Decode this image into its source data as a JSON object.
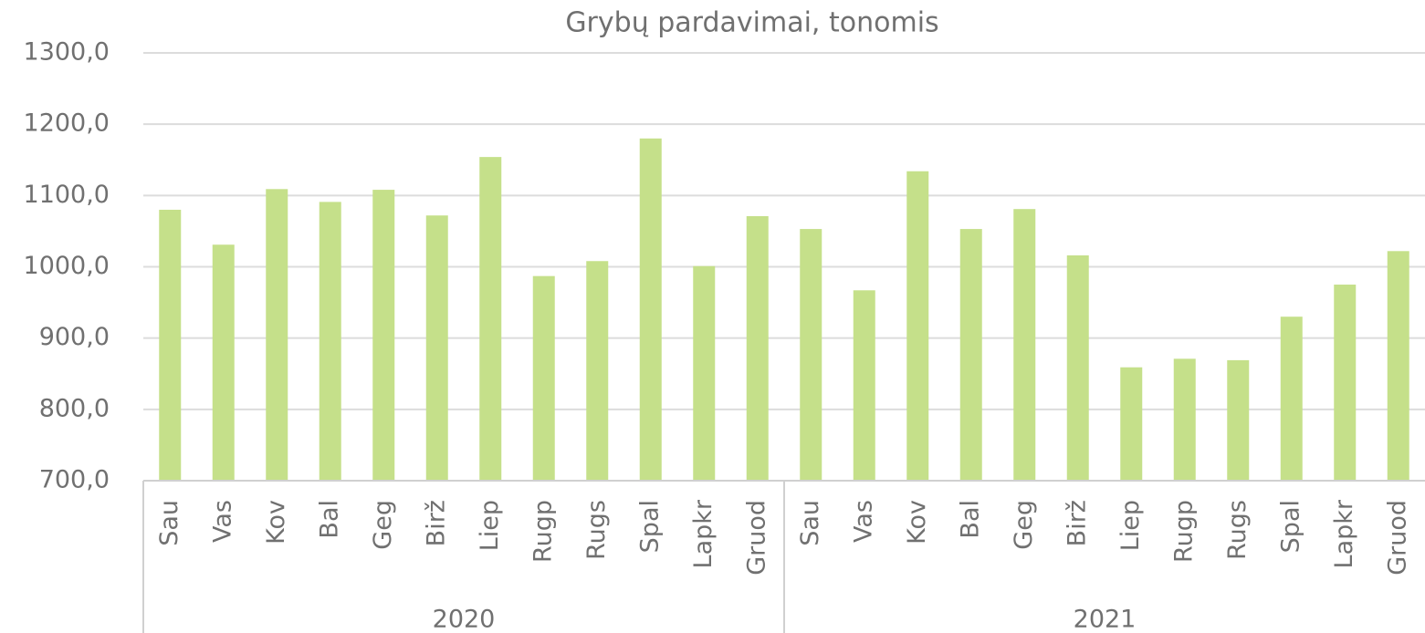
{
  "chart_data": {
    "type": "bar",
    "title": "Grybų pardavimai, tonomis",
    "categories": [
      "Sau",
      "Vas",
      "Kov",
      "Bal",
      "Geg",
      "Birž",
      "Liep",
      "Rugp",
      "Rugs",
      "Spal",
      "Lapkr",
      "Gruod",
      "Sau",
      "Vas",
      "Kov",
      "Bal",
      "Geg",
      "Birž",
      "Liep",
      "Rugp",
      "Rugs",
      "Spal",
      "Lapkr",
      "Gruod"
    ],
    "groups": [
      "2020",
      "2021"
    ],
    "values": [
      1080,
      1031,
      1109,
      1091,
      1108,
      1072,
      1154,
      987,
      1008,
      1180,
      1001,
      1071,
      1053,
      967,
      1134,
      1053,
      1081,
      1016,
      859,
      871,
      869,
      930,
      975,
      1022
    ],
    "color": "#c5e08a",
    "ylim": [
      700,
      1300
    ],
    "yticks": [
      {
        "value": 700,
        "label": "700,0"
      },
      {
        "value": 800,
        "label": "800,0"
      },
      {
        "value": 900,
        "label": "900,0"
      },
      {
        "value": 1000,
        "label": "1000,0"
      },
      {
        "value": 1100,
        "label": "1100,0"
      },
      {
        "value": 1200,
        "label": "1200,0"
      },
      {
        "value": 1300,
        "label": "1300,0"
      }
    ],
    "grid": true
  }
}
